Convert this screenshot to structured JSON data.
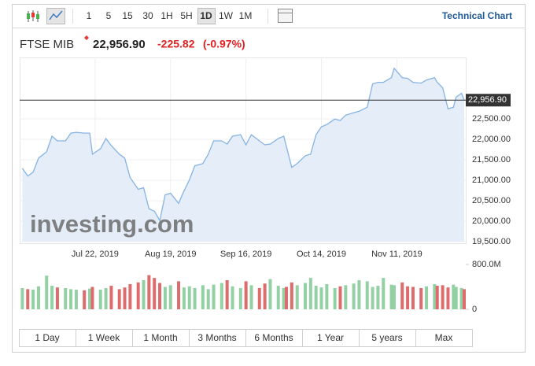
{
  "toolbar": {
    "intervals": [
      "1",
      "5",
      "15",
      "30",
      "1H",
      "5H",
      "1D",
      "1W",
      "1M"
    ],
    "selected": "1D",
    "link": "Technical Chart"
  },
  "header": {
    "name": "FTSE MIB",
    "price": "22,956.90",
    "change": "-225.82",
    "change_pct": "(-0.97%)"
  },
  "watermark": "investing.com",
  "chart_data": [
    {
      "type": "area",
      "x": [
        "2019-06-25",
        "2019-06-27",
        "2019-06-29",
        "2019-07-01",
        "2019-07-04",
        "2019-07-06",
        "2019-07-08",
        "2019-07-11",
        "2019-07-13",
        "2019-07-15",
        "2019-07-18",
        "2019-07-20",
        "2019-07-21",
        "2019-07-24",
        "2019-07-26",
        "2019-07-28",
        "2019-07-31",
        "2019-08-02",
        "2019-08-04",
        "2019-08-07",
        "2019-08-09",
        "2019-08-11",
        "2019-08-13",
        "2019-08-15",
        "2019-08-17",
        "2019-08-19",
        "2019-08-22",
        "2019-08-24",
        "2019-08-26",
        "2019-08-28",
        "2019-08-31",
        "2019-09-02",
        "2019-09-04",
        "2019-09-07",
        "2019-09-09",
        "2019-09-11",
        "2019-09-14",
        "2019-09-16",
        "2019-09-18",
        "2019-09-21",
        "2019-09-23",
        "2019-09-25",
        "2019-09-28",
        "2019-09-30",
        "2019-10-01",
        "2019-10-03",
        "2019-10-05",
        "2019-10-08",
        "2019-10-10",
        "2019-10-12",
        "2019-10-14",
        "2019-10-16",
        "2019-10-19",
        "2019-10-21",
        "2019-10-23",
        "2019-10-26",
        "2019-10-28",
        "2019-10-31",
        "2019-11-02",
        "2019-11-04",
        "2019-11-06",
        "2019-11-09",
        "2019-11-10",
        "2019-11-13",
        "2019-11-15",
        "2019-11-17",
        "2019-11-20",
        "2019-11-22",
        "2019-11-25",
        "2019-11-26",
        "2019-11-28",
        "2019-11-30",
        "2019-12-02",
        "2019-12-03",
        "2019-12-05",
        "2019-12-06"
      ],
      "values": [
        21294,
        21103,
        21198,
        21542,
        21694,
        22076,
        21961,
        21961,
        22152,
        22171,
        22152,
        22152,
        21637,
        21771,
        22019,
        21847,
        21637,
        21542,
        21065,
        20778,
        20817,
        20301,
        20244,
        20015,
        20645,
        20683,
        20435,
        20740,
        21007,
        21351,
        21408,
        21637,
        21961,
        21961,
        21885,
        22076,
        22114,
        21866,
        22114,
        21961,
        21866,
        21885,
        22019,
        22076,
        21828,
        21313,
        21408,
        21599,
        21637,
        22114,
        22305,
        22362,
        22496,
        22457,
        22591,
        22648,
        22686,
        22782,
        23354,
        23392,
        23392,
        23507,
        23736,
        23507,
        23488,
        23392,
        23373,
        23450,
        23507,
        23392,
        23259,
        22744,
        22782,
        23030,
        23125,
        22956.9
      ],
      "color": "#86b3e2",
      "fill": "#e4edf8",
      "xlim": [
        "2019-06-24",
        "2019-12-06"
      ],
      "xticks": [
        {
          "value": "2019-07-22",
          "label": "Jul 22, 2019"
        },
        {
          "value": "2019-08-19",
          "label": "Aug 19, 2019"
        },
        {
          "value": "2019-09-16",
          "label": "Sep 16, 2019"
        },
        {
          "value": "2019-10-14",
          "label": "Oct 14, 2019"
        },
        {
          "value": "2019-11-11",
          "label": "Nov 11, 2019"
        }
      ],
      "ylim": [
        19500,
        24000
      ],
      "yticks": [
        {
          "value": 19500,
          "label": "19,500.00"
        },
        {
          "value": 20000,
          "label": "20,000.00"
        },
        {
          "value": 20500,
          "label": "20,500.00"
        },
        {
          "value": 21000,
          "label": "21,000.00"
        },
        {
          "value": 21500,
          "label": "21,500.00"
        },
        {
          "value": 22000,
          "label": "22,000.00"
        },
        {
          "value": 22500,
          "label": "22,500.00"
        }
      ],
      "grid": true,
      "price_line": {
        "value": 22956.9,
        "label": "22,956.90"
      }
    },
    {
      "type": "bar",
      "x": [
        "2019-06-25",
        "2019-06-27",
        "2019-06-29",
        "2019-07-01",
        "2019-07-04",
        "2019-07-06",
        "2019-07-08",
        "2019-07-11",
        "2019-07-13",
        "2019-07-15",
        "2019-07-18",
        "2019-07-20",
        "2019-07-21",
        "2019-07-24",
        "2019-07-26",
        "2019-07-28",
        "2019-07-31",
        "2019-08-02",
        "2019-08-04",
        "2019-08-07",
        "2019-08-09",
        "2019-08-11",
        "2019-08-13",
        "2019-08-15",
        "2019-08-17",
        "2019-08-19",
        "2019-08-22",
        "2019-08-24",
        "2019-08-26",
        "2019-08-28",
        "2019-08-31",
        "2019-09-02",
        "2019-09-04",
        "2019-09-07",
        "2019-09-09",
        "2019-09-11",
        "2019-09-14",
        "2019-09-16",
        "2019-09-18",
        "2019-09-21",
        "2019-09-23",
        "2019-09-25",
        "2019-09-28",
        "2019-09-30",
        "2019-10-01",
        "2019-10-03",
        "2019-10-05",
        "2019-10-08",
        "2019-10-10",
        "2019-10-12",
        "2019-10-14",
        "2019-10-16",
        "2019-10-19",
        "2019-10-21",
        "2019-10-23",
        "2019-10-26",
        "2019-10-28",
        "2019-10-31",
        "2019-11-02",
        "2019-11-04",
        "2019-11-06",
        "2019-11-09",
        "2019-11-10",
        "2019-11-13",
        "2019-11-15",
        "2019-11-17",
        "2019-11-20",
        "2019-11-22",
        "2019-11-25",
        "2019-11-26",
        "2019-11-28",
        "2019-11-30",
        "2019-12-02",
        "2019-12-03",
        "2019-12-05",
        "2019-12-06"
      ],
      "values": [
        380000000,
        360000000,
        350000000,
        410000000,
        600000000,
        420000000,
        390000000,
        380000000,
        360000000,
        350000000,
        340000000,
        370000000,
        400000000,
        350000000,
        380000000,
        420000000,
        360000000,
        390000000,
        450000000,
        480000000,
        520000000,
        610000000,
        560000000,
        470000000,
        400000000,
        430000000,
        500000000,
        390000000,
        410000000,
        380000000,
        430000000,
        360000000,
        440000000,
        470000000,
        520000000,
        410000000,
        380000000,
        500000000,
        430000000,
        380000000,
        460000000,
        540000000,
        420000000,
        380000000,
        400000000,
        480000000,
        430000000,
        470000000,
        560000000,
        420000000,
        390000000,
        450000000,
        380000000,
        410000000,
        430000000,
        460000000,
        520000000,
        500000000,
        400000000,
        420000000,
        560000000,
        440000000,
        430000000,
        480000000,
        410000000,
        400000000,
        380000000,
        410000000,
        450000000,
        420000000,
        430000000,
        390000000,
        440000000,
        400000000,
        380000000,
        360000000
      ],
      "up_color": "#93d0a3",
      "down_color": "#de6c6c",
      "xlim": [
        "2019-06-24",
        "2019-12-06"
      ],
      "ylim": [
        0,
        800000000
      ],
      "yticks": [
        0,
        {
          "value": 800000000,
          "label": "800.0M"
        }
      ]
    }
  ],
  "ranges": [
    "1 Day",
    "1 Week",
    "1 Month",
    "3 Months",
    "6 Months",
    "1 Year",
    "5 years",
    "Max"
  ]
}
